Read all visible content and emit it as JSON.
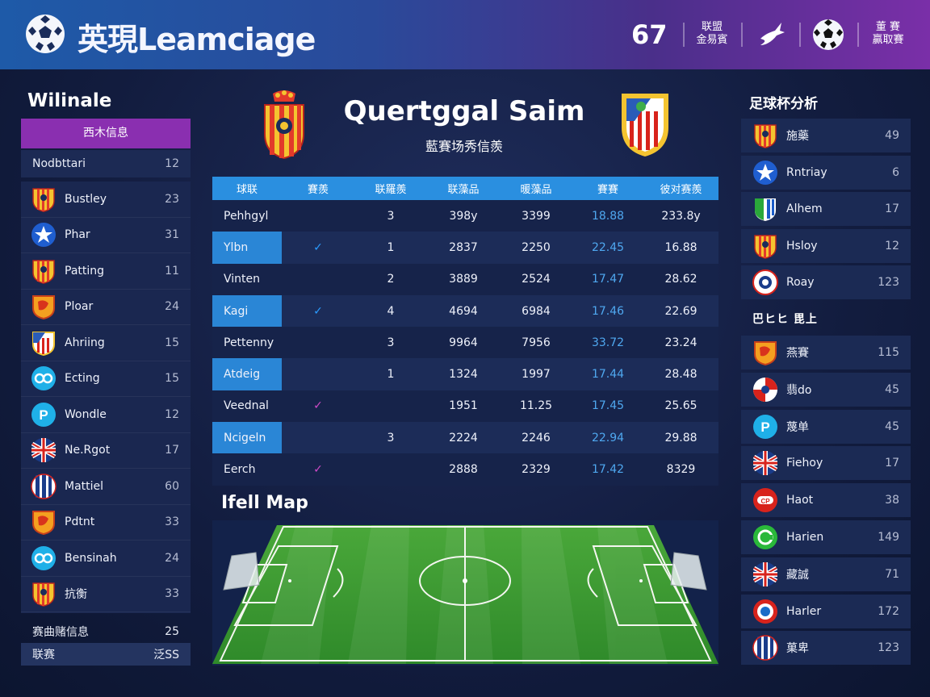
{
  "header": {
    "app_title": "英現Leamciage",
    "count": "67",
    "stack1_line1": "联盟",
    "stack1_line2": "金易賓",
    "stack2_line1": "董 賽",
    "stack2_line2": "贏取賽"
  },
  "left_panel": {
    "title": "Wilinale",
    "header_label": "西木信息",
    "sub_label": "Nodbttari",
    "sub_value": "12",
    "items": [
      {
        "name": "Bustley",
        "value": "23",
        "icon": "red-yellow-crest-icon"
      },
      {
        "name": "Phar",
        "value": "31",
        "icon": "blue-star-crest-icon"
      },
      {
        "name": "Patting",
        "value": "11",
        "icon": "red-yellow-crest-icon"
      },
      {
        "name": "Ploar",
        "value": "24",
        "icon": "orange-shield-icon"
      },
      {
        "name": "Ahriing",
        "value": "15",
        "icon": "red-white-stripe-crest-icon"
      },
      {
        "name": "Ecting",
        "value": "15",
        "icon": "cyan-round-crest-icon"
      },
      {
        "name": "Wondle",
        "value": "12",
        "icon": "cyan-p-crest-icon"
      },
      {
        "name": "Ne.Rgot",
        "value": "17",
        "icon": "union-jack-crest-icon"
      },
      {
        "name": "Mattiel",
        "value": "60",
        "icon": "blue-white-stripe-crest-icon"
      },
      {
        "name": "Pdtnt",
        "value": "33",
        "icon": "orange-shield-icon"
      },
      {
        "name": "Bensinah",
        "value": "24",
        "icon": "cyan-round-crest-icon"
      },
      {
        "name": "抗衡",
        "value": "33",
        "icon": "red-yellow-crest-icon"
      }
    ],
    "footer1_label": "赛曲赌信息",
    "footer1_value": "25",
    "footer2_label": "联赛",
    "footer2_value": "泛SS"
  },
  "match": {
    "title": "Quertggal Saim",
    "subtitle": "藍賽场秀信羨"
  },
  "table": {
    "headers": [
      "球联",
      "賽羨",
      "联羅羨",
      "联藻品",
      "暖藻品",
      "賽賽",
      "彼对赛羨"
    ],
    "rows": [
      {
        "name": "Pehhgyl",
        "check": "",
        "c2": "3",
        "c3": "398y",
        "c4": "3399",
        "c5": "18.88",
        "c6": "233.8y",
        "highlight": false
      },
      {
        "name": "Ylbn",
        "check": "✓",
        "check_color": "#2a9cff",
        "c2": "1",
        "c3": "2837",
        "c4": "2250",
        "c5": "22.45",
        "c6": "16.88",
        "highlight": true
      },
      {
        "name": "Vinten",
        "check": "",
        "c2": "2",
        "c3": "3889",
        "c4": "2524",
        "c5": "17.47",
        "c6": "28.62",
        "highlight": false
      },
      {
        "name": "Kagi",
        "check": "✓",
        "check_color": "#2a9cff",
        "c2": "4",
        "c3": "4694",
        "c4": "6984",
        "c5": "17.46",
        "c6": "22.69",
        "highlight": true
      },
      {
        "name": "Pettenny",
        "check": "",
        "c2": "3",
        "c3": "9964",
        "c4": "7956",
        "c5": "33.72",
        "c6": "23.24",
        "highlight": false
      },
      {
        "name": "Atdeig",
        "check": "",
        "c2": "1",
        "c3": "1324",
        "c4": "1997",
        "c5": "17.44",
        "c6": "28.48",
        "highlight": true
      },
      {
        "name": "Veednal",
        "check": "✓",
        "check_color": "#d04ac8",
        "c2": "",
        "c3": "1951",
        "c4": "11.25",
        "c5": "17.45",
        "c6": "25.65",
        "highlight": false
      },
      {
        "name": "Ncigeln",
        "check": "",
        "c2": "3",
        "c3": "2224",
        "c4": "2246",
        "c5": "22.94",
        "c6": "29.88",
        "highlight": true
      },
      {
        "name": "Eerch",
        "check": "✓",
        "check_color": "#d04ac8",
        "c2": "",
        "c3": "2888",
        "c4": "2329",
        "c5": "17.42",
        "c6": "8329",
        "highlight": false
      }
    ]
  },
  "map": {
    "title": "Ifell Map"
  },
  "right_panel": {
    "title": "足球杯分析",
    "mid_label": "巴ヒヒ 毘上",
    "top_items": [
      {
        "name": "施藥",
        "value": "49",
        "icon": "red-yellow-crest-icon"
      },
      {
        "name": "Rntriay",
        "value": "6",
        "icon": "blue-star-crest-icon"
      },
      {
        "name": "Alhem",
        "value": "17",
        "icon": "green-blue-shield-icon"
      },
      {
        "name": "Hsloy",
        "value": "12",
        "icon": "red-yellow-crest-icon"
      },
      {
        "name": "Roay",
        "value": "123",
        "icon": "white-round-crest-icon"
      }
    ],
    "bottom_items": [
      {
        "name": "燕賽",
        "value": "115",
        "icon": "orange-shield-icon"
      },
      {
        "name": "翡do",
        "value": "45",
        "icon": "red-white-round-crest-icon"
      },
      {
        "name": "蔑单",
        "value": "45",
        "icon": "cyan-p-crest-icon"
      },
      {
        "name": "Fiehoy",
        "value": "17",
        "icon": "union-jack-crest-icon"
      },
      {
        "name": "Haot",
        "value": "38",
        "icon": "red-pill-crest-icon"
      },
      {
        "name": "Harien",
        "value": "149",
        "icon": "green-round-crest-icon"
      },
      {
        "name": "藏誠",
        "value": "71",
        "icon": "union-jack-crest-icon"
      },
      {
        "name": "Harler",
        "value": "172",
        "icon": "red-blue-round-crest-icon"
      },
      {
        "name": "菓卑",
        "value": "123",
        "icon": "blue-white-stripe-crest-icon"
      }
    ]
  },
  "colors": {
    "accent_purple": "#8a2fb0",
    "accent_blue": "#2a8fe0",
    "check_blue": "#2a9cff",
    "check_pink": "#d04ac8"
  }
}
